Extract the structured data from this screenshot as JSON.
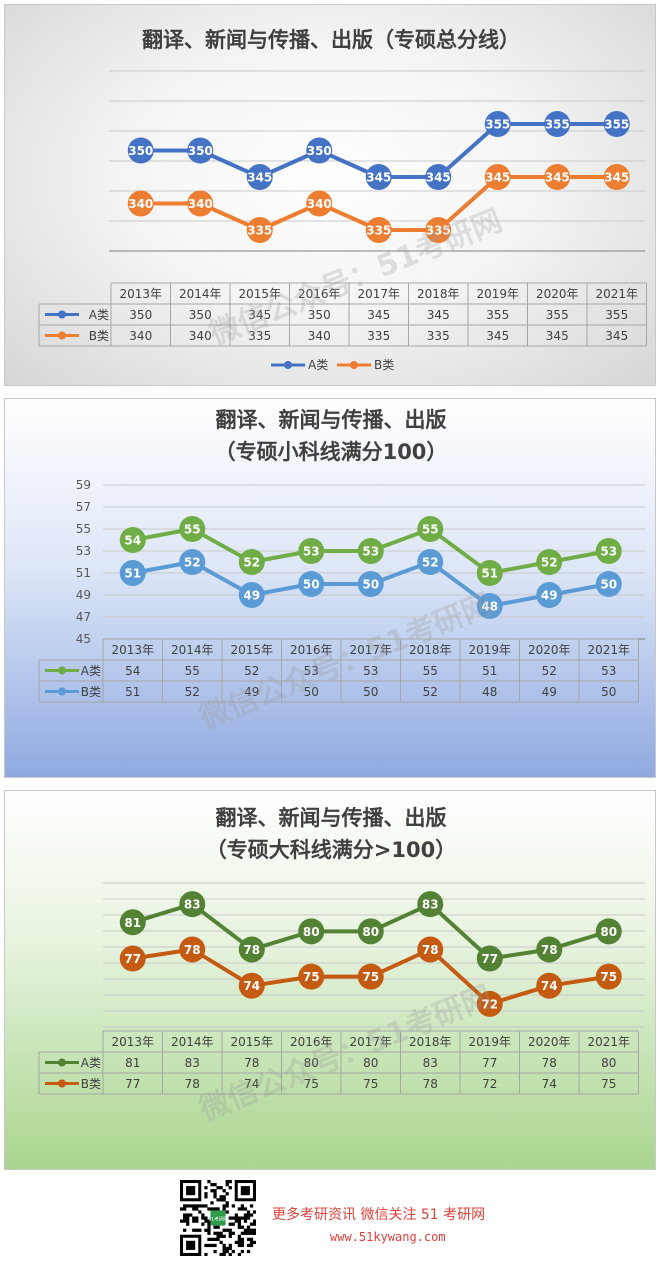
{
  "chart_data": [
    {
      "type": "line",
      "title": "翻译、新闻与传播、出版（专硕总分线）",
      "categories": [
        "2013年",
        "2014年",
        "2015年",
        "2016年",
        "2017年",
        "2018年",
        "2019年",
        "2020年",
        "2021年"
      ],
      "series": [
        {
          "name": "A类",
          "values": [
            350,
            350,
            345,
            350,
            345,
            345,
            355,
            355,
            355
          ],
          "color": "#4472c4"
        },
        {
          "name": "B类",
          "values": [
            340,
            340,
            335,
            340,
            335,
            335,
            345,
            345,
            345
          ],
          "color": "#ed7d31"
        }
      ],
      "ylim": [
        325,
        365
      ],
      "yticks": [],
      "grid": true,
      "legend": "bottom",
      "data_table": true
    },
    {
      "type": "line",
      "title": [
        "翻译、新闻与传播、出版",
        "（专硕小科线满分100）"
      ],
      "categories": [
        "2013年",
        "2014年",
        "2015年",
        "2016年",
        "2017年",
        "2018年",
        "2019年",
        "2020年",
        "2021年"
      ],
      "series": [
        {
          "name": "A类",
          "values": [
            54,
            55,
            52,
            53,
            53,
            55,
            51,
            52,
            53
          ],
          "color": "#70ad47"
        },
        {
          "name": "B类",
          "values": [
            51,
            52,
            49,
            50,
            50,
            52,
            48,
            49,
            50
          ],
          "color": "#5b9bd5"
        }
      ],
      "ylim": [
        45,
        59
      ],
      "yticks": [
        "59",
        "57",
        "55",
        "53",
        "51",
        "49",
        "47",
        "45"
      ],
      "grid": true,
      "legend": "in-table",
      "data_table": true
    },
    {
      "type": "line",
      "title": [
        "翻译、新闻与传播、出版",
        "（专硕大科线满分>100）"
      ],
      "categories": [
        "2013年",
        "2014年",
        "2015年",
        "2016年",
        "2017年",
        "2018年",
        "2019年",
        "2020年",
        "2021年"
      ],
      "series": [
        {
          "name": "A类",
          "values": [
            81,
            83,
            78,
            80,
            80,
            83,
            77,
            78,
            80
          ],
          "color": "#548235"
        },
        {
          "name": "B类",
          "values": [
            77,
            78,
            74,
            75,
            75,
            78,
            72,
            74,
            75
          ],
          "color": "#c55a11"
        }
      ],
      "ylim": [
        69,
        86
      ],
      "yticks": [],
      "grid": true,
      "legend": "in-table",
      "data_table": true
    }
  ],
  "watermark": "微信公众号：51考研网",
  "footer": {
    "qr_caption": "51考研网",
    "promo": "更多考研资讯  微信关注 51 考研网",
    "url": "www.51kywang.com"
  }
}
